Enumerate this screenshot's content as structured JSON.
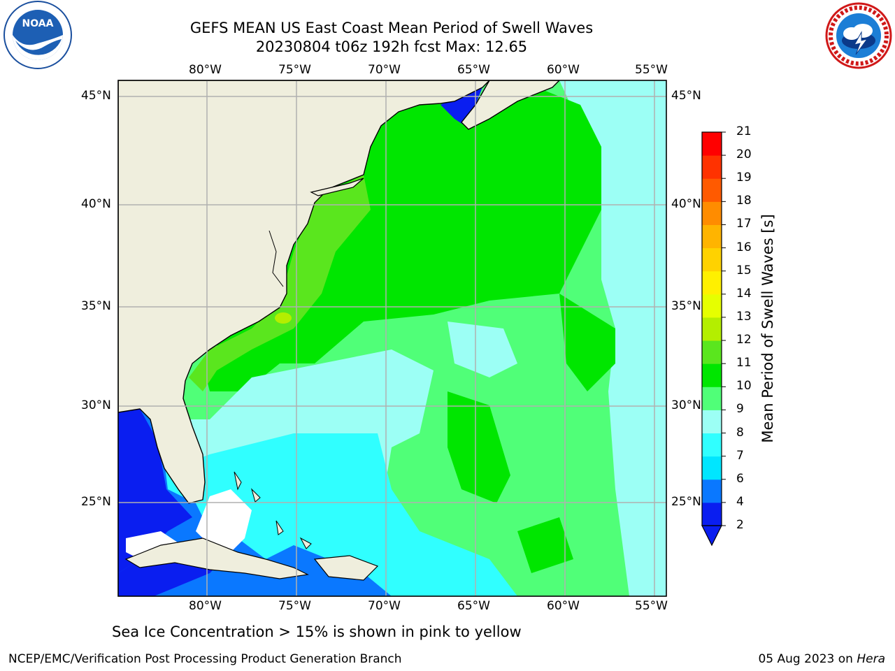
{
  "header": {
    "title_line1": "GEFS MEAN US East Coast Mean Period of Swell Waves",
    "title_line2": "20230804 t06z 192h fcst   Max: 12.65"
  },
  "logos": {
    "left": {
      "name": "NOAA",
      "text": "NOAA"
    },
    "right": {
      "name": "National Weather Service"
    }
  },
  "map": {
    "lon_labels": [
      "80°W",
      "75°W",
      "70°W",
      "65°W",
      "60°W",
      "55°W"
    ],
    "lat_labels": [
      "45°N",
      "40°N",
      "35°N",
      "30°N",
      "25°N"
    ],
    "land_color": "#efeedd",
    "grid_color": "#b0b0b0"
  },
  "colorbar": {
    "title": "Mean Period of Swell Waves [s]",
    "ticks": [
      "2",
      "4",
      "6",
      "7",
      "8",
      "9",
      "10",
      "11",
      "12",
      "13",
      "14",
      "15",
      "16",
      "17",
      "18",
      "19",
      "20",
      "21"
    ],
    "colors": [
      "#0a1ef0",
      "#0a78ff",
      "#00e6ff",
      "#30ffff",
      "#9cfff5",
      "#50ff78",
      "#00e600",
      "#5ae61e",
      "#b4ee00",
      "#e6ff00",
      "#fff000",
      "#ffd200",
      "#ffb400",
      "#ff8c00",
      "#ff5a00",
      "#ff3200",
      "#ff0000"
    ]
  },
  "footer": {
    "caption": "Sea Ice Concentration > 15% is shown in pink to yellow",
    "credit_left": "NCEP/EMC/Verification Post Processing Product Generation Branch",
    "credit_date": "05 Aug 2023 on ",
    "credit_host": "Hera"
  }
}
